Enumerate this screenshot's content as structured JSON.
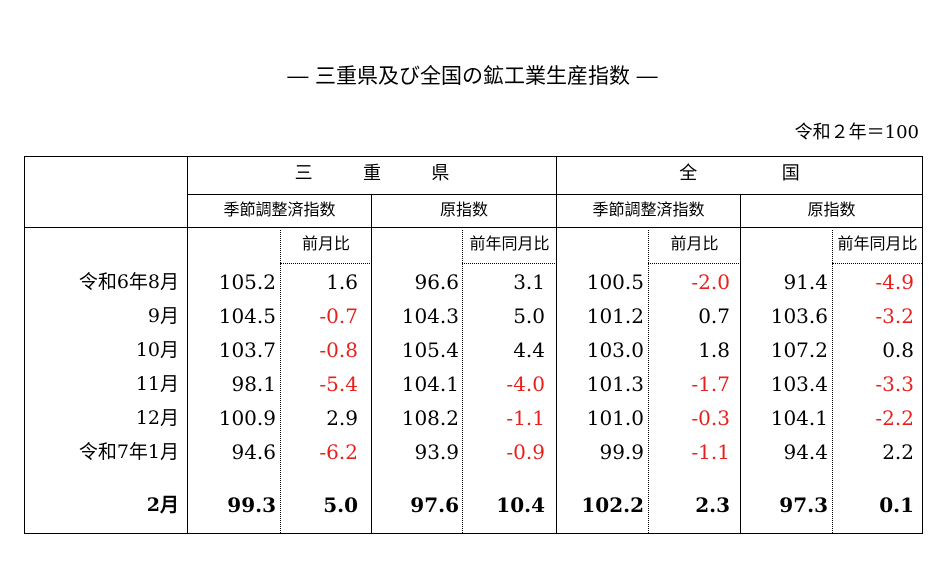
{
  "title": "― 三重県及び全国の鉱工業生産指数 ―",
  "unit": "令和２年＝100",
  "header": {
    "groups": [
      "三　重　県",
      "全　　国"
    ],
    "index_types": [
      "季節調整済指数",
      "原指数",
      "季節調整済指数",
      "原指数"
    ],
    "ratios": [
      "前月比",
      "前年同月比",
      "前月比",
      "前年同月比"
    ]
  },
  "rows": [
    {
      "label": "令和6年8月",
      "values": [
        "105.2",
        "1.6",
        "96.6",
        "3.1",
        "100.5",
        "-2.0",
        "91.4",
        "-4.9"
      ]
    },
    {
      "label": "9月",
      "values": [
        "104.5",
        "-0.7",
        "104.3",
        "5.0",
        "101.2",
        "0.7",
        "103.6",
        "-3.2"
      ]
    },
    {
      "label": "10月",
      "values": [
        "103.7",
        "-0.8",
        "105.4",
        "4.4",
        "103.0",
        "1.8",
        "107.2",
        "0.8"
      ]
    },
    {
      "label": "11月",
      "values": [
        "98.1",
        "-5.4",
        "104.1",
        "-4.0",
        "101.3",
        "-1.7",
        "103.4",
        "-3.3"
      ]
    },
    {
      "label": "12月",
      "values": [
        "100.9",
        "2.9",
        "108.2",
        "-1.1",
        "101.0",
        "-0.3",
        "104.1",
        "-2.2"
      ]
    },
    {
      "label": "令和7年1月",
      "values": [
        "94.6",
        "-6.2",
        "93.9",
        "-0.9",
        "99.9",
        "-1.1",
        "94.4",
        "2.2"
      ]
    },
    {
      "label": "2月",
      "values": [
        "99.3",
        "5.0",
        "97.6",
        "10.4",
        "102.2",
        "2.3",
        "97.3",
        "0.1"
      ]
    }
  ],
  "colors": {
    "negative": "#e8201c",
    "text": "#000000",
    "border": "#000000"
  }
}
